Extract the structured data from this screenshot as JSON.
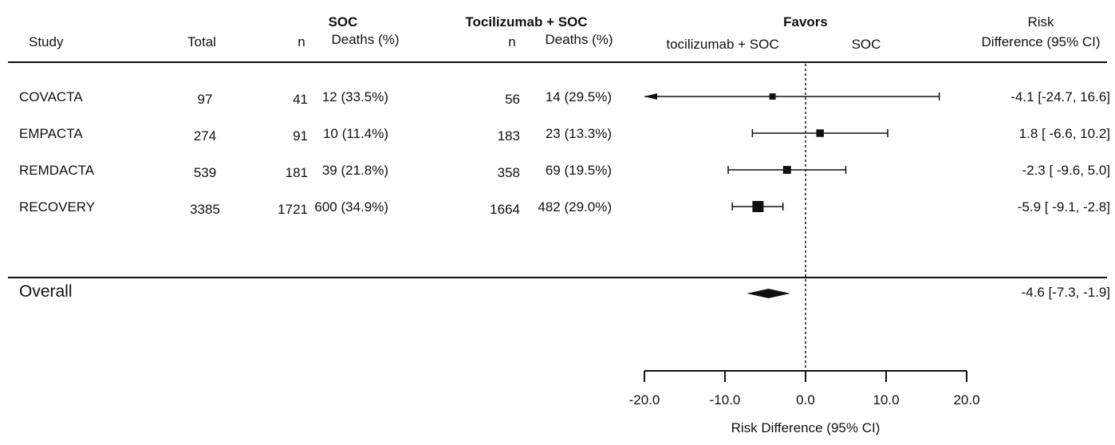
{
  "headers": {
    "study": "Study",
    "total": "Total",
    "soc_group": "SOC",
    "soc_n": "n",
    "soc_deaths": "Deaths (%)",
    "toci_group": "Tocilizumab + SOC",
    "toci_n": "n",
    "toci_deaths": "Deaths (%)",
    "favors": "Favors",
    "favors_left": "tocilizumab + SOC",
    "favors_right": "SOC",
    "risk_line1": "Risk",
    "risk_line2": "Difference (95% CI)"
  },
  "rows": [
    {
      "study": "COVACTA",
      "total": "97",
      "soc_n": "41",
      "soc_deaths": "12 (33.5%)",
      "toci_n": "56",
      "toci_deaths": "14 (29.5%)",
      "rd_text": "-4.1 [-24.7, 16.6]"
    },
    {
      "study": "EMPACTA",
      "total": "274",
      "soc_n": "91",
      "soc_deaths": "10 (11.4%)",
      "toci_n": "183",
      "toci_deaths": "23 (13.3%)",
      "rd_text": "1.8 [ -6.6, 10.2]"
    },
    {
      "study": "REMDACTA",
      "total": "539",
      "soc_n": "181",
      "soc_deaths": "39 (21.8%)",
      "toci_n": "358",
      "toci_deaths": "69 (19.5%)",
      "rd_text": "-2.3 [ -9.6,  5.0]"
    },
    {
      "study": "RECOVERY",
      "total": "3385",
      "soc_n": "1721",
      "soc_deaths": "600 (34.9%)",
      "toci_n": "1664",
      "toci_deaths": "482 (29.0%)",
      "rd_text": "-5.9 [ -9.1, -2.8]"
    }
  ],
  "overall": {
    "label": "Overall",
    "rd_text": "-4.6 [-7.3, -1.9]"
  },
  "chart_data": {
    "type": "forest",
    "xlabel": "Risk Difference (95% CI)",
    "xlim": [
      -20,
      20
    ],
    "x_ticks": [
      -20,
      -10,
      0,
      10,
      20
    ],
    "x_tick_labels": [
      "-20.0",
      "-10.0",
      "0.0",
      "10.0",
      "20.0"
    ],
    "reference_line": 0,
    "studies": [
      {
        "name": "COVACTA",
        "estimate": -4.1,
        "lower": -24.7,
        "upper": 16.6,
        "weight": 0.15,
        "lower_truncated": true
      },
      {
        "name": "EMPACTA",
        "estimate": 1.8,
        "lower": -6.6,
        "upper": 10.2,
        "weight": 0.3
      },
      {
        "name": "REMDACTA",
        "estimate": -2.3,
        "lower": -9.6,
        "upper": 5.0,
        "weight": 0.35
      },
      {
        "name": "RECOVERY",
        "estimate": -5.9,
        "lower": -9.1,
        "upper": -2.8,
        "weight": 1.0
      }
    ],
    "overall": {
      "estimate": -4.6,
      "lower": -7.3,
      "upper": -1.9
    }
  }
}
